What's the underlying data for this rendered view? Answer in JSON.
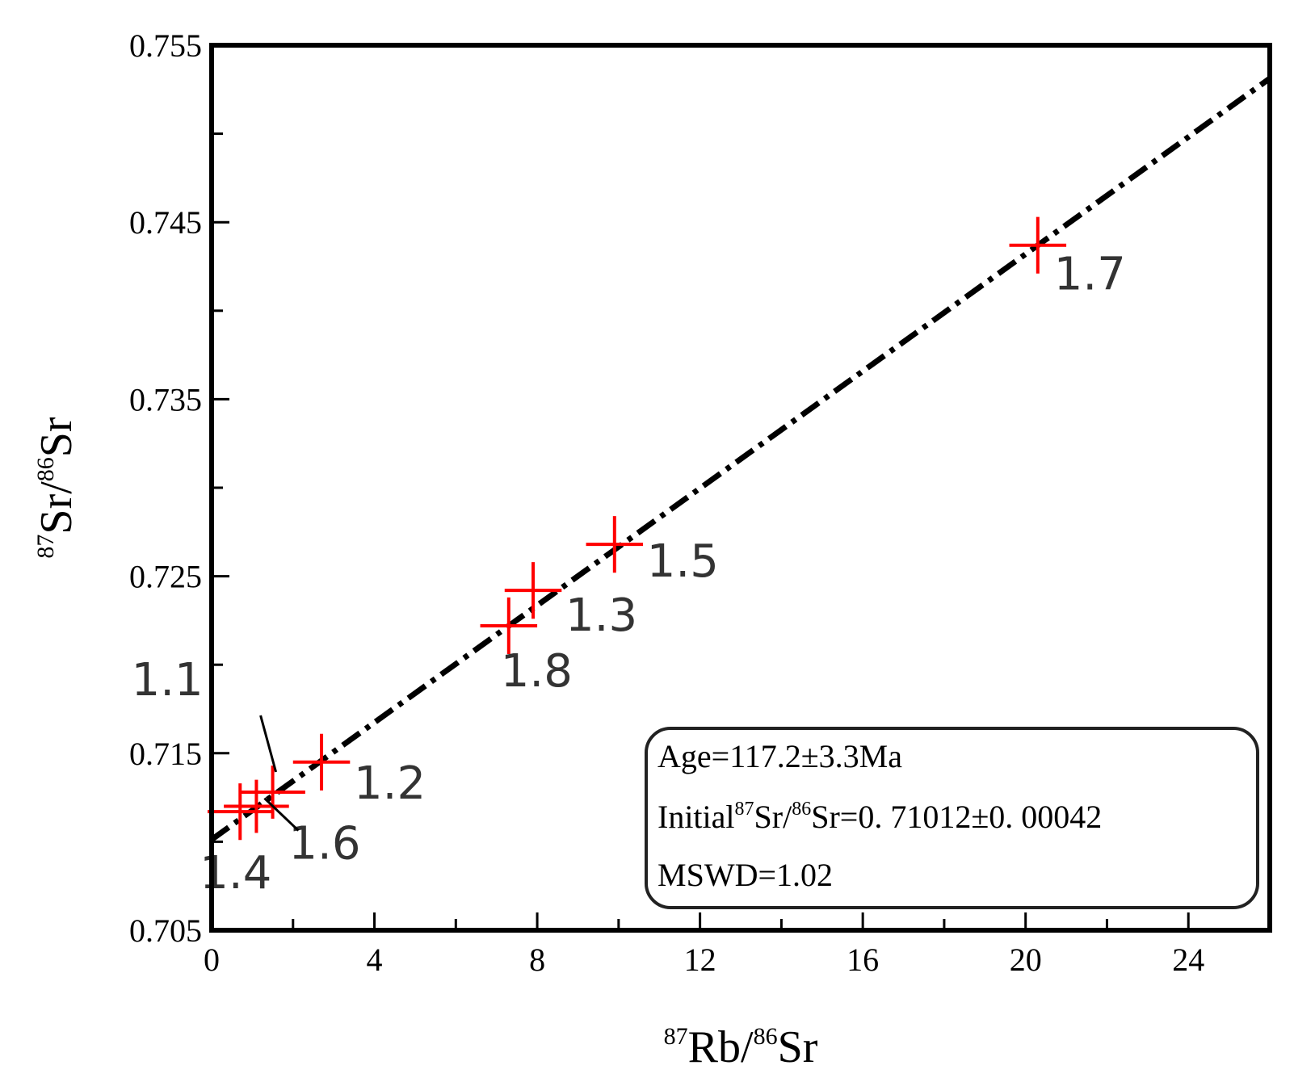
{
  "chart_data": {
    "type": "scatter",
    "xlabel": {
      "prefix": "87",
      "main": "Rb/",
      "prefix2": "86",
      "main2": "Sr"
    },
    "ylabel": {
      "prefix": "87",
      "main": "Sr/",
      "prefix2": "86",
      "main2": "Sr"
    },
    "xlim": [
      0,
      26
    ],
    "ylim": [
      0.705,
      0.755
    ],
    "x_ticks": [
      0,
      4,
      8,
      12,
      16,
      20,
      24
    ],
    "x_tick_labels": [
      "0",
      "4",
      "8",
      "12",
      "16",
      "20",
      "24"
    ],
    "y_ticks": [
      0.705,
      0.715,
      0.725,
      0.735,
      0.745,
      0.755
    ],
    "y_tick_labels": [
      "0.705",
      "0.715",
      "0.725",
      "0.735",
      "0.745",
      "0.755"
    ],
    "points": [
      {
        "label": "1.1",
        "x": 1.5,
        "y": 0.7128,
        "dx": 0.8,
        "dy": 0.0015
      },
      {
        "label": "1.2",
        "x": 2.7,
        "y": 0.7145,
        "dx": 0.7,
        "dy": 0.0016
      },
      {
        "label": "1.3",
        "x": 7.9,
        "y": 0.7242,
        "dx": 0.7,
        "dy": 0.0016
      },
      {
        "label": "1.4",
        "x": 0.7,
        "y": 0.7117,
        "dx": 0.8,
        "dy": 0.0016
      },
      {
        "label": "1.5",
        "x": 9.9,
        "y": 0.7268,
        "dx": 0.7,
        "dy": 0.0016
      },
      {
        "label": "1.6",
        "x": 1.1,
        "y": 0.712,
        "dx": 0.8,
        "dy": 0.0015
      },
      {
        "label": "1.7",
        "x": 20.3,
        "y": 0.7437,
        "dx": 0.7,
        "dy": 0.0016
      },
      {
        "label": "1.8",
        "x": 7.3,
        "y": 0.7222,
        "dx": 0.7,
        "dy": 0.0016
      }
    ],
    "regression_line": {
      "intercept": 0.71012,
      "slope": 0.001654
    },
    "info_box": {
      "age": "Age=117.2±3.3Ma",
      "initial_prefix": "Initial",
      "initial_sup1": "87",
      "initial_mid": "Sr/",
      "initial_sup2": "86",
      "initial_rest": "Sr=0. 71012±0. 00042",
      "mswd": "MSWD=1.02"
    },
    "colors": {
      "points": "#ff0000",
      "line": "#000000",
      "axes": "#000000"
    }
  }
}
